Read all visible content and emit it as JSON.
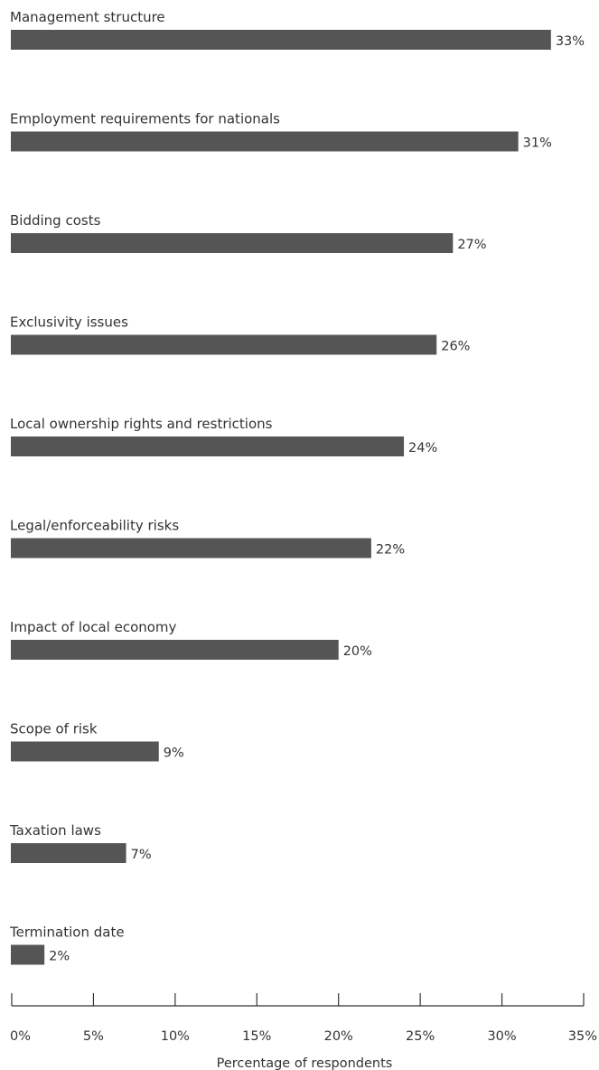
{
  "chart_data": {
    "type": "bar",
    "orientation": "horizontal",
    "categories": [
      "Management structure",
      "Employment requirements for nationals",
      "Bidding costs",
      "Exclusivity issues",
      "Local ownership rights and restrictions",
      "Legal/enforceability risks",
      "Impact of local economy",
      "Scope of risk",
      "Taxation laws",
      "Termination date"
    ],
    "values": [
      33,
      31,
      27,
      26,
      24,
      22,
      20,
      9,
      7,
      2
    ],
    "value_labels": [
      "33%",
      "31%",
      "27%",
      "26%",
      "24%",
      "22%",
      "20%",
      "9%",
      "7%",
      "2%"
    ],
    "xlabel": "Percentage of respondents",
    "xlim": [
      0,
      35
    ],
    "xticks": [
      0,
      5,
      10,
      15,
      20,
      25,
      30,
      35
    ],
    "xtick_labels": [
      "0%",
      "5%",
      "10%",
      "15%",
      "20%",
      "25%",
      "30%",
      "35%"
    ],
    "bar_color": "#555555",
    "grid": false
  }
}
